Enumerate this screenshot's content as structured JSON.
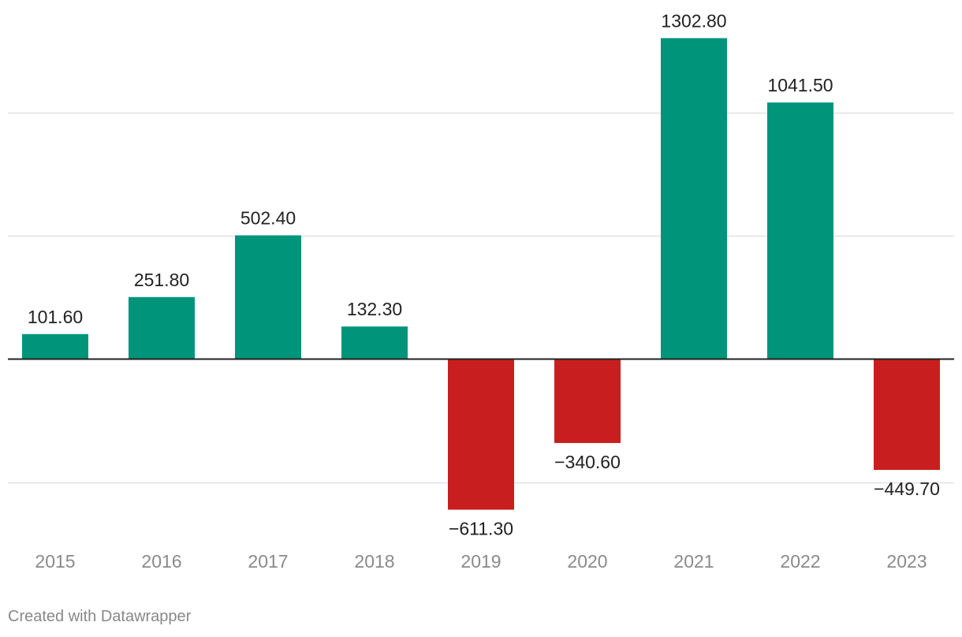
{
  "chart_data": {
    "type": "bar",
    "categories": [
      "2015",
      "2016",
      "2017",
      "2018",
      "2019",
      "2020",
      "2021",
      "2022",
      "2023"
    ],
    "values": [
      101.6,
      251.8,
      502.4,
      132.3,
      -611.3,
      -340.6,
      1302.8,
      1041.5,
      -449.7
    ],
    "value_labels": [
      "101.60",
      "251.80",
      "502.40",
      "132.30",
      "−611.30",
      "−340.60",
      "1302.80",
      "1041.50",
      "−449.70"
    ],
    "ylim": [
      -700,
      1300
    ],
    "gridlines": [
      -500,
      500,
      1000
    ],
    "grid": true,
    "colors": {
      "positive": "#00957a",
      "negative": "#c91e1f",
      "zero_line": "#222222",
      "grid": "#e2e2e2"
    }
  },
  "footer": {
    "credit": "Created with Datawrapper"
  }
}
